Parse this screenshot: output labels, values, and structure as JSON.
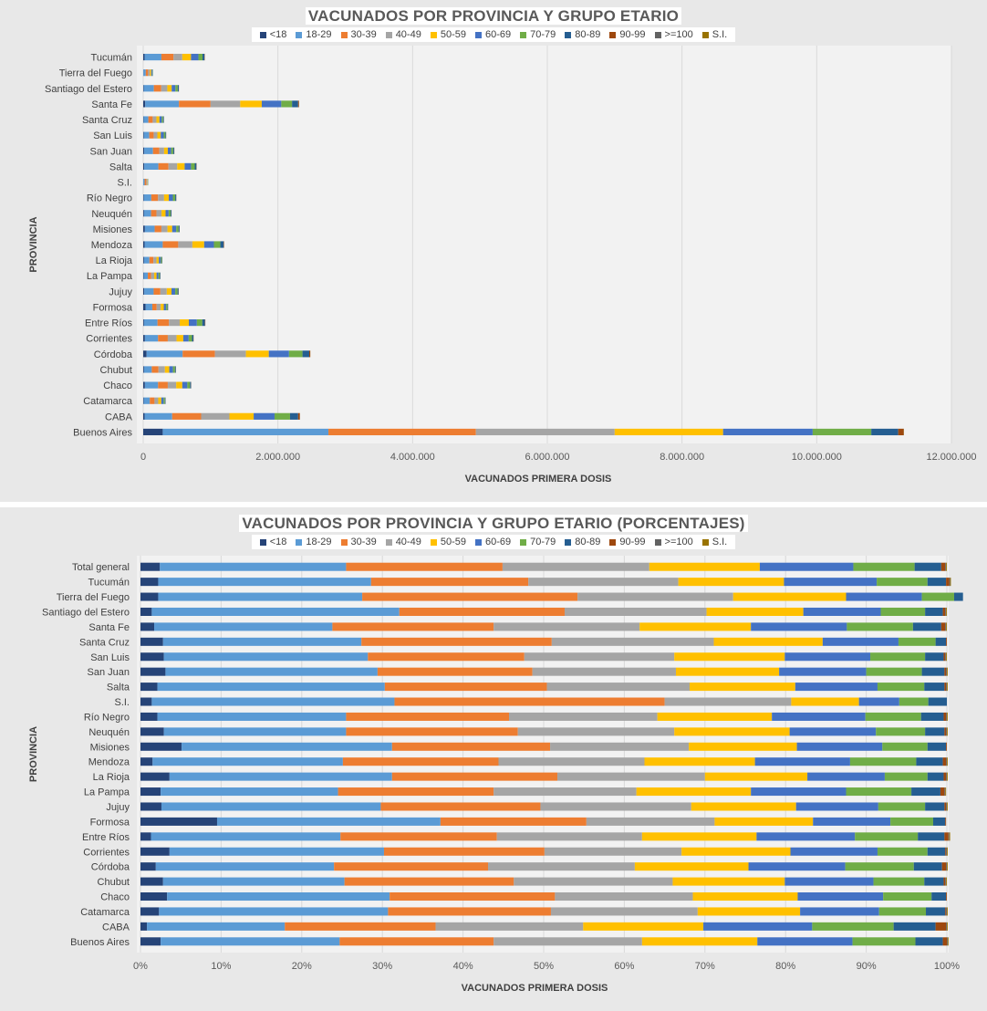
{
  "age_groups": [
    "<18",
    "18-29",
    "30-39",
    "40-49",
    "50-59",
    "60-69",
    "70-79",
    "80-89",
    "90-99",
    ">=100",
    "S.I."
  ],
  "colors": [
    "#264478",
    "#5b9bd5",
    "#ed7d31",
    "#a5a5a5",
    "#ffc000",
    "#4472c4",
    "#70ad47",
    "#255e91",
    "#9e480e",
    "#636363",
    "#997300"
  ],
  "chart_data": [
    {
      "type": "bar",
      "orientation": "horizontal",
      "stacked": true,
      "title": "VACUNADOS POR PROVINCIA Y GRUPO ETARIO",
      "xlabel": "VACUNADOS PRIMERA  DOSIS",
      "ylabel": "PROVINCIA",
      "xlim": [
        0,
        12000000
      ],
      "xticks": [
        "0",
        "2.000.000",
        "4.000.000",
        "6.000.000",
        "8.000.000",
        "10.000.000",
        "12.000.000"
      ],
      "grid": true,
      "legend": "top",
      "categories": [
        "Tucumán",
        "Tierra del Fuego",
        "Santiago del Estero",
        "Santa Fe",
        "Santa Cruz",
        "San Luis",
        "San Juan",
        "Salta",
        "S.I.",
        "Río Negro",
        "Neuquén",
        "Misiones",
        "Mendoza",
        "La Rioja",
        "La Pampa",
        "Jujuy",
        "Formosa",
        "Entre Ríos",
        "Corrientes",
        "Córdoba",
        "Chubut",
        "Chaco",
        "Catamarca",
        "CABA",
        "Buenos Aires"
      ],
      "series": [
        {
          "name": "<18",
          "values": [
            20000,
            3000,
            8000,
            30000,
            6000,
            10000,
            15000,
            15000,
            1000,
            10000,
            12000,
            25000,
            20000,
            12000,
            8000,
            15000,
            35000,
            12000,
            25000,
            50000,
            12000,
            25000,
            8000,
            20000,
            290000
          ]
        },
        {
          "name": "18-29",
          "values": [
            250000,
            35000,
            150000,
            500000,
            70000,
            80000,
            130000,
            210000,
            20000,
            110000,
            105000,
            145000,
            270000,
            80000,
            60000,
            140000,
            100000,
            200000,
            195000,
            535000,
            115000,
            195000,
            90000,
            410000,
            2460000
          ]
        },
        {
          "name": "30-39",
          "values": [
            180000,
            35000,
            110000,
            470000,
            65000,
            65000,
            95000,
            150000,
            25000,
            100000,
            80000,
            100000,
            230000,
            60000,
            50000,
            100000,
            65000,
            170000,
            145000,
            480000,
            100000,
            145000,
            70000,
            430000,
            2190000
          ]
        },
        {
          "name": "40-49",
          "values": [
            130000,
            25000,
            90000,
            440000,
            55000,
            55000,
            70000,
            130000,
            12000,
            90000,
            75000,
            90000,
            210000,
            45000,
            45000,
            95000,
            60000,
            160000,
            130000,
            460000,
            95000,
            125000,
            55000,
            420000,
            2060000
          ]
        },
        {
          "name": "50-59",
          "values": [
            130000,
            20000,
            65000,
            320000,
            45000,
            50000,
            55000,
            110000,
            7000,
            70000,
            60000,
            70000,
            175000,
            35000,
            35000,
            70000,
            45000,
            135000,
            100000,
            340000,
            65000,
            90000,
            45000,
            360000,
            1610000
          ]
        },
        {
          "name": "60-69",
          "values": [
            110000,
            15000,
            55000,
            290000,
            35000,
            45000,
            50000,
            95000,
            4000,
            60000,
            45000,
            60000,
            145000,
            30000,
            30000,
            55000,
            35000,
            120000,
            80000,
            300000,
            55000,
            75000,
            35000,
            310000,
            1330000
          ]
        },
        {
          "name": "70-79",
          "values": [
            60000,
            7000,
            35000,
            160000,
            20000,
            25000,
            30000,
            55000,
            3000,
            35000,
            30000,
            35000,
            95000,
            15000,
            20000,
            35000,
            20000,
            80000,
            50000,
            200000,
            30000,
            40000,
            20000,
            230000,
            870000
          ]
        },
        {
          "name": "80-89",
          "values": [
            30000,
            4000,
            15000,
            90000,
            10000,
            10000,
            15000,
            25000,
            2000,
            15000,
            12000,
            15000,
            50000,
            6000,
            8000,
            15000,
            9000,
            40000,
            20000,
            100000,
            12000,
            15000,
            8000,
            120000,
            400000
          ]
        },
        {
          "name": "90-99",
          "values": [
            4000,
            0,
            2000,
            12000,
            1000,
            1000,
            2000,
            3000,
            0,
            2000,
            1500,
            1500,
            6000,
            1000,
            1000,
            2000,
            1000,
            5000,
            3000,
            15000,
            1500,
            2000,
            1000,
            25000,
            80000
          ]
        },
        {
          "name": ">=100",
          "values": [
            200,
            0,
            100,
            300,
            100,
            100,
            100,
            200,
            0,
            100,
            100,
            100,
            200,
            100,
            100,
            100,
            100,
            200,
            100,
            500,
            100,
            100,
            100,
            600,
            2000
          ]
        },
        {
          "name": "S.I.",
          "values": [
            500,
            0,
            200,
            800,
            100,
            200,
            200,
            300,
            0,
            200,
            200,
            200,
            500,
            100,
            100,
            200,
            100,
            400,
            200,
            1000,
            200,
            200,
            100,
            1000,
            3000
          ]
        }
      ]
    },
    {
      "type": "bar",
      "orientation": "horizontal",
      "stacked": true,
      "percent": true,
      "title": "VACUNADOS POR PROVINCIA Y GRUPO ETARIO (PORCENTAJES)",
      "xlabel": "VACUNADOS PRIMERA  DOSIS",
      "ylabel": "PROVINCIA",
      "xlim": [
        0,
        100
      ],
      "xticks": [
        "0%",
        "10%",
        "20%",
        "30%",
        "40%",
        "50%",
        "60%",
        "70%",
        "80%",
        "90%",
        "100%"
      ],
      "grid": true,
      "legend": "top",
      "categories": [
        "Total general",
        "Tucumán",
        "Tierra del Fuego",
        "Santiago del Estero",
        "Santa Fe",
        "Santa Cruz",
        "San Luis",
        "San Juan",
        "Salta",
        "S.I.",
        "Río Negro",
        "Neuquén",
        "Misiones",
        "Mendoza",
        "La Rioja",
        "La Pampa",
        "Jujuy",
        "Formosa",
        "Entre Ríos",
        "Corrientes",
        "Córdoba",
        "Chubut",
        "Chaco",
        "Catamarca",
        "CABA",
        "Buenos Aires"
      ],
      "series": [
        {
          "name": "<18",
          "values": [
            2.4,
            2.2,
            2.2,
            1.4,
            1.7,
            2.8,
            2.9,
            3.1,
            2.1,
            1.4,
            2.1,
            2.9,
            5.1,
            1.5,
            3.6,
            2.5,
            2.6,
            9.5,
            1.3,
            3.6,
            1.9,
            2.8,
            3.3,
            2.3,
            0.8,
            2.5
          ]
        },
        {
          "name": "18-29",
          "values": [
            23.1,
            26.4,
            25.3,
            30.7,
            22.1,
            24.6,
            25.3,
            26.3,
            28.2,
            30.1,
            23.4,
            22.6,
            26.1,
            23.6,
            27.6,
            22.0,
            27.2,
            27.7,
            23.5,
            26.6,
            22.1,
            22.5,
            27.6,
            28.4,
            17.1,
            22.2
          ]
        },
        {
          "name": "30-39",
          "values": [
            19.4,
            19.5,
            26.7,
            20.5,
            20.0,
            23.6,
            19.4,
            19.2,
            20.1,
            33.5,
            20.2,
            21.3,
            19.6,
            19.3,
            20.5,
            19.3,
            19.8,
            18.1,
            19.4,
            19.9,
            19.1,
            21.0,
            20.5,
            20.2,
            18.7,
            19.1
          ]
        },
        {
          "name": "40-49",
          "values": [
            18.2,
            18.6,
            19.3,
            17.6,
            18.1,
            20.1,
            18.6,
            17.8,
            17.7,
            15.7,
            18.4,
            19.4,
            17.2,
            18.1,
            18.3,
            17.7,
            18.7,
            15.9,
            18.0,
            17.0,
            18.2,
            19.7,
            17.1,
            18.2,
            18.3,
            18.4
          ]
        },
        {
          "name": "50-59",
          "values": [
            13.7,
            13.1,
            14.0,
            12.0,
            13.8,
            13.5,
            13.7,
            12.8,
            13.1,
            8.4,
            14.2,
            14.3,
            13.4,
            13.7,
            12.7,
            14.2,
            13.0,
            12.2,
            14.2,
            13.5,
            14.1,
            13.9,
            13.0,
            12.7,
            14.9,
            14.3
          ]
        },
        {
          "name": "60-69",
          "values": [
            11.6,
            11.5,
            9.4,
            9.6,
            11.9,
            9.4,
            10.6,
            10.8,
            10.2,
            5.0,
            11.6,
            10.7,
            10.6,
            11.8,
            9.6,
            11.8,
            10.2,
            9.6,
            12.2,
            10.8,
            12.0,
            11.0,
            10.6,
            9.8,
            13.5,
            11.8
          ]
        },
        {
          "name": "70-79",
          "values": [
            7.6,
            6.3,
            4.0,
            5.5,
            8.2,
            4.6,
            6.8,
            6.9,
            5.8,
            3.6,
            6.9,
            6.1,
            5.6,
            8.2,
            5.3,
            8.1,
            5.8,
            5.3,
            7.8,
            6.2,
            8.5,
            6.3,
            6.0,
            5.8,
            10.1,
            7.8
          ]
        },
        {
          "name": "80-89",
          "values": [
            3.3,
            2.3,
            1.1,
            2.2,
            3.5,
            1.3,
            2.3,
            2.8,
            2.5,
            2.3,
            2.8,
            2.4,
            2.3,
            3.3,
            2.0,
            3.6,
            2.4,
            1.5,
            3.3,
            2.2,
            3.5,
            2.4,
            1.8,
            2.4,
            5.2,
            3.4
          ]
        },
        {
          "name": "90-99",
          "values": [
            0.5,
            0.4,
            0.0,
            0.3,
            0.5,
            0.1,
            0.2,
            0.2,
            0.2,
            0.0,
            0.3,
            0.2,
            0.1,
            0.4,
            0.3,
            0.5,
            0.2,
            0.1,
            0.5,
            0.1,
            0.5,
            0.2,
            0.1,
            0.1,
            1.3,
            0.5
          ]
        },
        {
          "name": ">=100",
          "values": [
            0.1,
            0.1,
            0.0,
            0.1,
            0.1,
            0.0,
            0.1,
            0.1,
            0.1,
            0.0,
            0.1,
            0.1,
            0.0,
            0.1,
            0.1,
            0.1,
            0.1,
            0.0,
            0.1,
            0.1,
            0.1,
            0.1,
            0.0,
            0.1,
            0.1,
            0.1
          ]
        },
        {
          "name": "S.I.",
          "values": [
            0.1,
            0.1,
            0.0,
            0.1,
            0.1,
            0.0,
            0.1,
            0.1,
            0.1,
            0.0,
            0.1,
            0.1,
            0.0,
            0.1,
            0.1,
            0.1,
            0.1,
            0.0,
            0.1,
            0.1,
            0.1,
            0.1,
            0.0,
            0.1,
            0.1,
            0.1
          ]
        }
      ]
    }
  ]
}
